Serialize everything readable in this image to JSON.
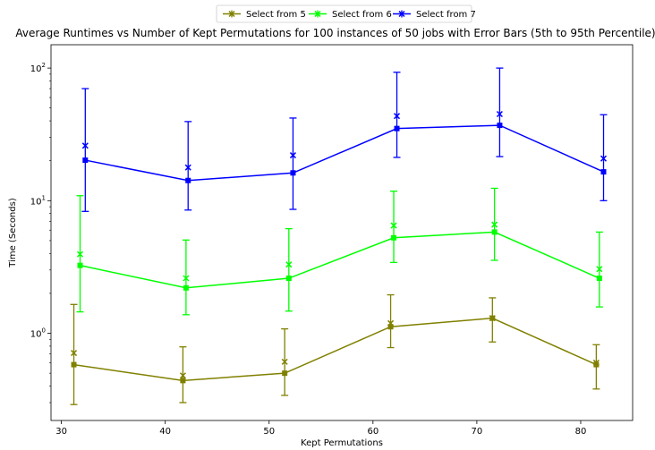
{
  "chart_data": {
    "type": "line",
    "title": "Average Runtimes vs Number of Kept Permutations for 100 instances of 50 jobs with Error Bars (5th to 95th Percentile)",
    "xlabel": "Kept Permutations",
    "ylabel": "Time (Seconds)",
    "xlim": [
      29,
      85
    ],
    "ylim": [
      0.22,
      150
    ],
    "yscale": "log",
    "xticks": [
      30,
      40,
      50,
      60,
      70,
      80
    ],
    "yticks": [
      {
        "value": 1,
        "base": "10",
        "exp": "0"
      },
      {
        "value": 10,
        "base": "10",
        "exp": "1"
      },
      {
        "value": 100,
        "base": "10",
        "exp": "2"
      }
    ],
    "grid": false,
    "legend_position": "top-center",
    "series": [
      {
        "name": "Select from 5",
        "color": "#808000",
        "x": [
          31.2,
          41.7,
          51.5,
          61.7,
          71.5,
          81.5
        ],
        "values": [
          0.58,
          0.44,
          0.5,
          1.12,
          1.3,
          0.58
        ],
        "mean_marker": [
          0.71,
          0.48,
          0.61,
          1.19,
          1.3,
          0.6
        ],
        "err_low": [
          0.29,
          0.3,
          0.34,
          0.78,
          0.86,
          0.38
        ],
        "err_high": [
          1.65,
          0.79,
          1.08,
          1.95,
          1.85,
          0.82
        ]
      },
      {
        "name": "Select from 6",
        "color": "#00ff00",
        "x": [
          31.8,
          42.0,
          51.9,
          62.0,
          71.7,
          81.8
        ],
        "values": [
          3.25,
          2.2,
          2.6,
          5.25,
          5.8,
          2.6
        ],
        "mean_marker": [
          3.95,
          2.6,
          3.3,
          6.5,
          6.6,
          3.05
        ],
        "err_low": [
          1.45,
          1.38,
          1.47,
          3.42,
          3.55,
          1.58
        ],
        "err_high": [
          10.9,
          5.05,
          6.15,
          11.8,
          12.4,
          5.8
        ]
      },
      {
        "name": "Select from 7",
        "color": "#0000ff",
        "x": [
          32.3,
          42.2,
          52.3,
          62.3,
          72.2,
          82.2
        ],
        "values": [
          20.2,
          14.2,
          16.2,
          35.0,
          37.0,
          16.5
        ],
        "mean_marker": [
          26.0,
          17.8,
          22.0,
          43.5,
          45.0,
          20.8
        ],
        "err_low": [
          8.3,
          8.5,
          8.6,
          21.2,
          21.5,
          10.0
        ],
        "err_high": [
          70.0,
          39.5,
          42.0,
          93.0,
          100.0,
          44.5
        ]
      }
    ]
  }
}
